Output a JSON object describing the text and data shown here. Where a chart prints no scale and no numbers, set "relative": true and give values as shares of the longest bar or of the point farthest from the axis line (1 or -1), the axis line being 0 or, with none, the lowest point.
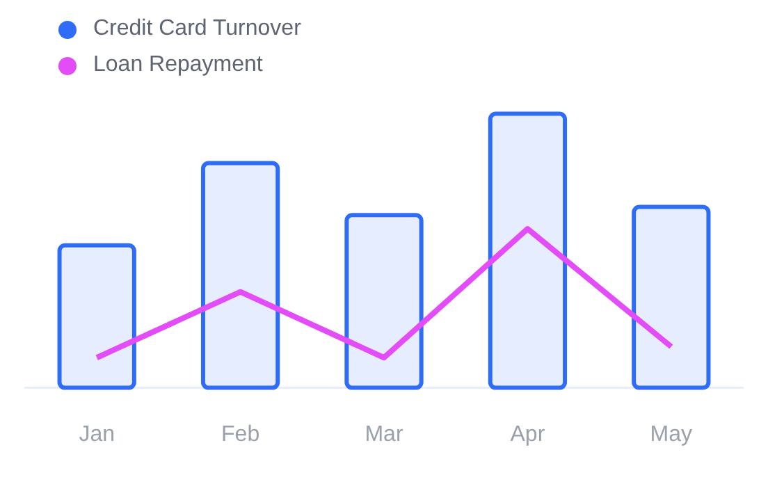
{
  "chart_data": {
    "type": "bar",
    "relative": true,
    "categories": [
      "Jan",
      "Feb",
      "Mar",
      "Apr",
      "May"
    ],
    "series": [
      {
        "name": "Credit Card Turnover",
        "color": "#2f6df6",
        "values": [
          0.52,
          0.82,
          0.63,
          1,
          0.66
        ]
      },
      {
        "name": "Loan Repayment",
        "type": "line",
        "color": "#e34df7",
        "values": [
          0.11,
          0.35,
          0.11,
          0.58,
          0.15
        ]
      }
    ],
    "legend": "top left",
    "marker": "none"
  }
}
